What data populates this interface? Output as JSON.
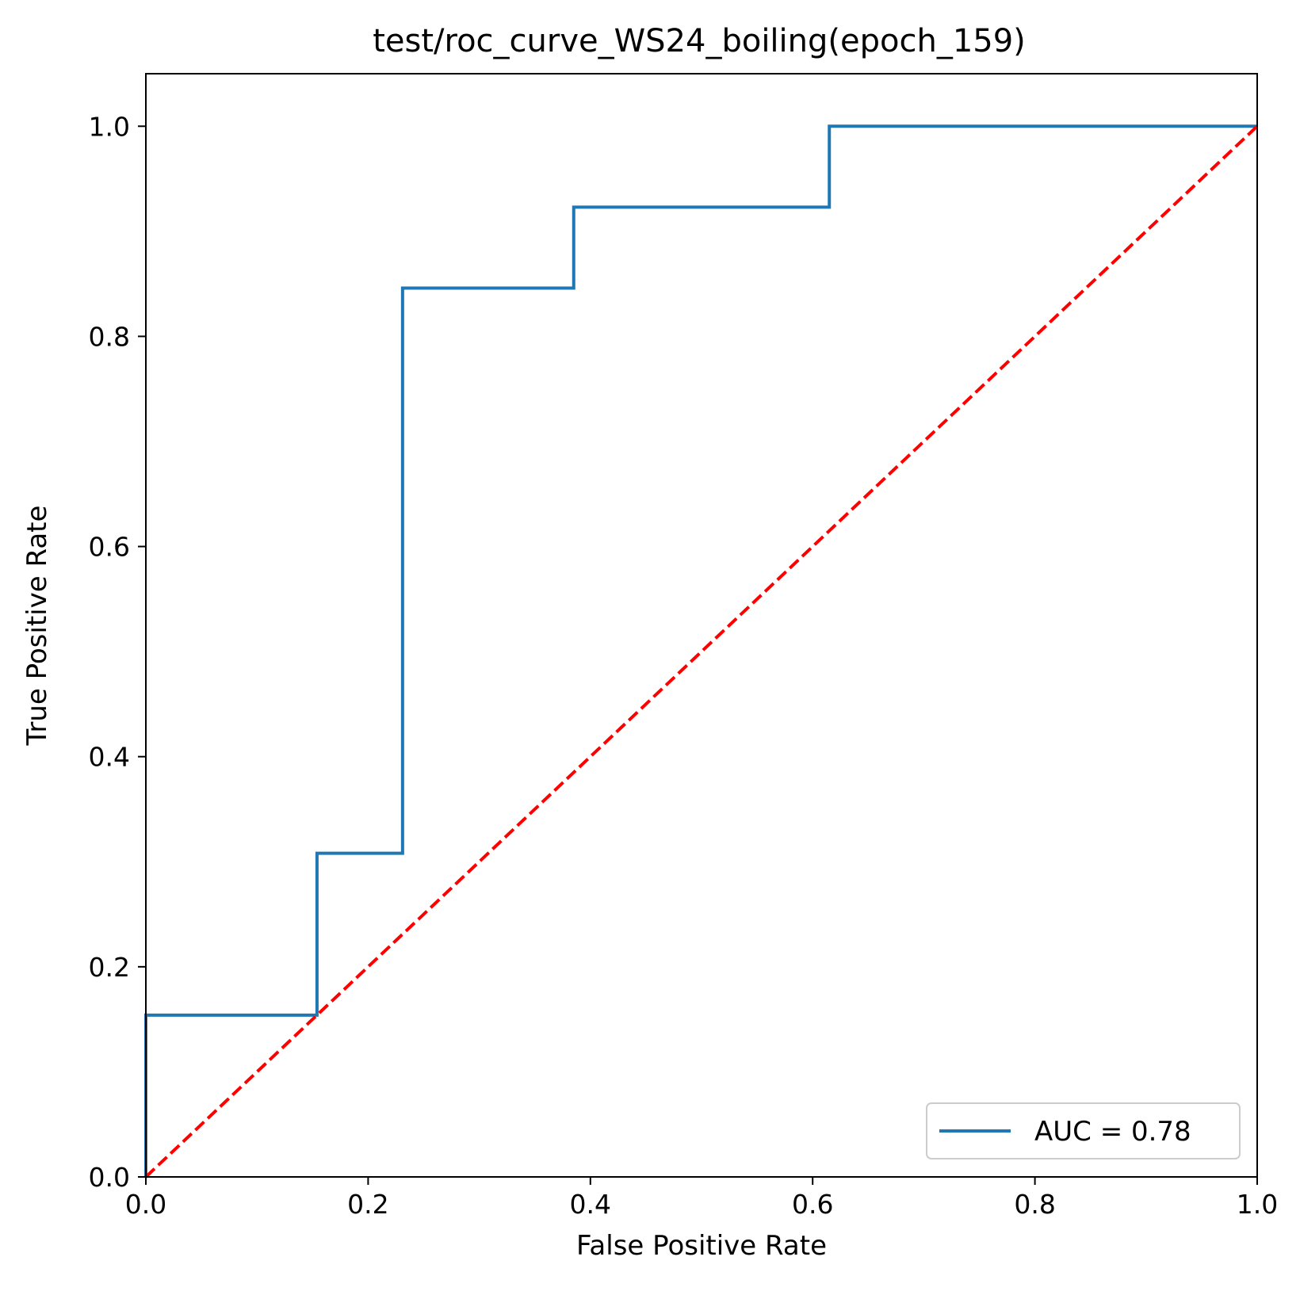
{
  "chart_data": {
    "type": "line",
    "title": "test/roc_curve_WS24_boiling(epoch_159)",
    "xlabel": "False Positive Rate",
    "ylabel": "True Positive Rate",
    "xlim": [
      0.0,
      1.0
    ],
    "ylim": [
      0.0,
      1.05
    ],
    "xticks": [
      "0.0",
      "0.2",
      "0.4",
      "0.6",
      "0.8",
      "1.0"
    ],
    "yticks": [
      "0.0",
      "0.2",
      "0.4",
      "0.6",
      "0.8",
      "1.0"
    ],
    "grid": false,
    "legend_position": "lower-right",
    "series": [
      {
        "name": "AUC = 0.78",
        "color": "#1f77b4",
        "style": "solid",
        "x": [
          0.0,
          0.0,
          0.154,
          0.154,
          0.231,
          0.231,
          0.385,
          0.385,
          0.615,
          0.615,
          1.0
        ],
        "y": [
          0.0,
          0.154,
          0.154,
          0.308,
          0.308,
          0.846,
          0.846,
          0.923,
          0.923,
          1.0,
          1.0
        ]
      },
      {
        "color": "#ff0000",
        "style": "dashed",
        "x": [
          0.0,
          1.0
        ],
        "y": [
          0.0,
          1.0
        ]
      }
    ]
  }
}
